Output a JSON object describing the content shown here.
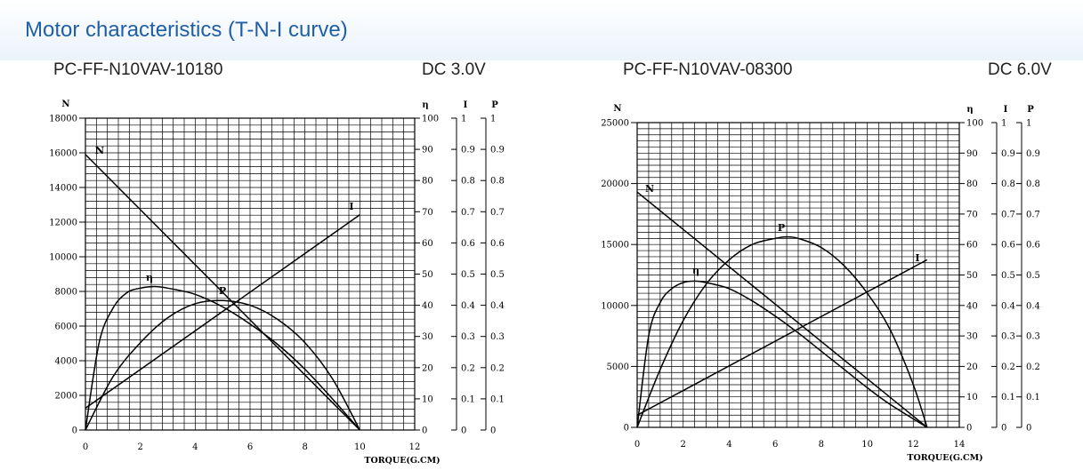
{
  "page_title": "Motor characteristics (T-N-I curve)",
  "chart_data": [
    {
      "type": "line",
      "model": "PC-FF-N10VAV-10180",
      "voltage": "DC 3.0V",
      "xlabel": "TORQUE(G.CM)",
      "xlim": [
        0,
        12
      ],
      "xticks": [
        0,
        2,
        4,
        6,
        8,
        10,
        12
      ],
      "axes": {
        "N": {
          "label": "N",
          "range": [
            0,
            18000
          ],
          "ticks": [
            0,
            2000,
            4000,
            6000,
            8000,
            10000,
            12000,
            14000,
            16000,
            18000
          ]
        },
        "eta": {
          "label": "η",
          "range": [
            0,
            100
          ],
          "ticks": [
            0,
            10,
            20,
            30,
            40,
            50,
            60,
            70,
            80,
            90,
            100
          ]
        },
        "I": {
          "label": "I",
          "range": [
            0,
            1
          ],
          "ticks": [
            "0",
            "0.1",
            "0.2",
            "0.3",
            "0.4",
            "0.5",
            "0.6",
            "0.7",
            "0.8",
            "0.9",
            "1"
          ]
        },
        "P": {
          "label": "P",
          "range": [
            0,
            1
          ],
          "ticks": [
            "0",
            "0.1",
            "0.2",
            "0.3",
            "0.4",
            "0.5",
            "0.6",
            "0.7",
            "0.8",
            "0.9",
            "1"
          ]
        }
      },
      "grid": true,
      "series": [
        {
          "name": "N",
          "axis": "N",
          "x": [
            0,
            10
          ],
          "y": [
            15900,
            0
          ]
        },
        {
          "name": "I",
          "axis": "I",
          "x": [
            0,
            10
          ],
          "y": [
            0.07,
            0.69
          ]
        },
        {
          "name": "η",
          "axis": "eta",
          "x": [
            0,
            0.5,
            1,
            1.5,
            2,
            2.5,
            3,
            4,
            5,
            6,
            7,
            8,
            9,
            10
          ],
          "y": [
            0,
            28,
            39,
            44,
            45.5,
            46,
            45.5,
            43.5,
            39.5,
            34,
            27.5,
            19.5,
            10,
            0
          ]
        },
        {
          "name": "P",
          "axis": "P",
          "x": [
            0,
            1,
            2,
            3,
            4,
            5,
            6,
            7,
            8,
            9,
            10
          ],
          "y": [
            0,
            0.17,
            0.28,
            0.36,
            0.405,
            0.415,
            0.4,
            0.355,
            0.28,
            0.165,
            0
          ]
        }
      ]
    },
    {
      "type": "line",
      "model": "PC-FF-N10VAV-08300",
      "voltage": "DC 6.0V",
      "xlabel": "TORQUE(G.CM)",
      "xlim": [
        0,
        14
      ],
      "xticks": [
        0,
        2,
        4,
        6,
        8,
        10,
        12,
        14
      ],
      "axes": {
        "N": {
          "label": "N",
          "range": [
            0,
            25000
          ],
          "ticks": [
            0,
            5000,
            10000,
            15000,
            20000,
            25000
          ]
        },
        "eta": {
          "label": "η",
          "range": [
            0,
            100
          ],
          "ticks": [
            0,
            10,
            20,
            30,
            40,
            50,
            60,
            70,
            80,
            90,
            100
          ]
        },
        "I": {
          "label": "I",
          "range": [
            0,
            1
          ],
          "ticks": [
            "0",
            "0.1",
            "0.2",
            "0.3",
            "0.4",
            "0.5",
            "0.6",
            "0.7",
            "0.8",
            "0.9",
            "1"
          ]
        },
        "P": {
          "label": "P",
          "range": [
            0,
            1
          ],
          "ticks": [
            "0",
            "0.1",
            "0.2",
            "0.3",
            "0.4",
            "0.5",
            "0.6",
            "0.7",
            "0.8",
            "0.9",
            "1"
          ]
        }
      },
      "grid": true,
      "series": [
        {
          "name": "N",
          "axis": "N",
          "x": [
            0,
            12.6
          ],
          "y": [
            19300,
            0
          ]
        },
        {
          "name": "I",
          "axis": "I",
          "x": [
            0,
            12.6
          ],
          "y": [
            0.04,
            0.55
          ]
        },
        {
          "name": "η",
          "axis": "eta",
          "x": [
            0,
            0.5,
            1,
            1.5,
            2,
            2.5,
            3,
            4,
            5,
            6,
            7,
            8,
            9,
            10,
            11,
            12.6
          ],
          "y": [
            0,
            30,
            41,
            45.5,
            47.5,
            48,
            47.5,
            45.5,
            41.5,
            36.5,
            31,
            25,
            19,
            13,
            7.5,
            0
          ]
        },
        {
          "name": "P",
          "axis": "P",
          "x": [
            0,
            1,
            2,
            3,
            4,
            5,
            6,
            6.5,
            7,
            8,
            9,
            10,
            11,
            12,
            12.6
          ],
          "y": [
            0,
            0.19,
            0.35,
            0.47,
            0.55,
            0.6,
            0.62,
            0.625,
            0.62,
            0.59,
            0.53,
            0.44,
            0.32,
            0.14,
            0
          ]
        }
      ]
    }
  ]
}
